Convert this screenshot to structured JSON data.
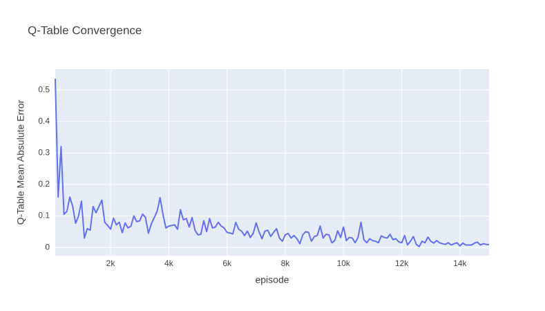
{
  "chart_data": {
    "type": "line",
    "title": "Q-Table Convergence",
    "xlabel": "episode",
    "ylabel": "Q-Table Mean Absulute Error",
    "xlim": [
      100,
      15000
    ],
    "ylim": [
      -0.026,
      0.566
    ],
    "xticks": [
      {
        "value": 2000,
        "label": "2k"
      },
      {
        "value": 4000,
        "label": "4k"
      },
      {
        "value": 6000,
        "label": "6k"
      },
      {
        "value": 8000,
        "label": "8k"
      },
      {
        "value": 10000,
        "label": "10k"
      },
      {
        "value": 12000,
        "label": "12k"
      },
      {
        "value": 14000,
        "label": "14k"
      }
    ],
    "yticks": [
      0,
      0.1,
      0.2,
      0.3,
      0.4,
      0.5
    ],
    "grid": true,
    "series": [
      {
        "color": "#636efa",
        "x": [
          100,
          200,
          300,
          400,
          500,
          600,
          700,
          800,
          900,
          1000,
          1100,
          1200,
          1300,
          1400,
          1500,
          1600,
          1700,
          1800,
          1900,
          2000,
          2100,
          2200,
          2300,
          2400,
          2500,
          2600,
          2700,
          2800,
          2900,
          3000,
          3100,
          3200,
          3300,
          3400,
          3500,
          3600,
          3700,
          3800,
          3900,
          4000,
          4100,
          4200,
          4300,
          4400,
          4500,
          4600,
          4700,
          4800,
          4900,
          5000,
          5100,
          5200,
          5300,
          5400,
          5500,
          5600,
          5700,
          5800,
          5900,
          6000,
          6100,
          6200,
          6300,
          6400,
          6500,
          6600,
          6700,
          6800,
          6900,
          7000,
          7100,
          7200,
          7300,
          7400,
          7500,
          7600,
          7700,
          7800,
          7900,
          8000,
          8100,
          8200,
          8300,
          8400,
          8500,
          8600,
          8700,
          8800,
          8900,
          9000,
          9100,
          9200,
          9300,
          9400,
          9500,
          9600,
          9700,
          9800,
          9900,
          10000,
          10100,
          10200,
          10300,
          10400,
          10500,
          10600,
          10700,
          10800,
          10900,
          11000,
          11100,
          11200,
          11300,
          11400,
          11500,
          11600,
          11700,
          11800,
          11900,
          12000,
          12100,
          12200,
          12300,
          12400,
          12500,
          12600,
          12700,
          12800,
          12900,
          13000,
          13100,
          13200,
          13300,
          13400,
          13500,
          13600,
          13700,
          13800,
          13900,
          14000,
          14100,
          14200,
          14300,
          14400,
          14500,
          14600,
          14700,
          14800,
          14900,
          15000
        ],
        "values": [
          0.535,
          0.16,
          0.32,
          0.105,
          0.115,
          0.16,
          0.13,
          0.077,
          0.1,
          0.147,
          0.03,
          0.06,
          0.055,
          0.13,
          0.11,
          0.13,
          0.15,
          0.08,
          0.07,
          0.058,
          0.093,
          0.072,
          0.08,
          0.047,
          0.078,
          0.062,
          0.068,
          0.1,
          0.082,
          0.085,
          0.106,
          0.095,
          0.045,
          0.075,
          0.095,
          0.115,
          0.158,
          0.105,
          0.062,
          0.068,
          0.07,
          0.072,
          0.058,
          0.12,
          0.088,
          0.092,
          0.065,
          0.095,
          0.055,
          0.04,
          0.042,
          0.085,
          0.05,
          0.092,
          0.062,
          0.065,
          0.08,
          0.068,
          0.062,
          0.048,
          0.046,
          0.043,
          0.08,
          0.058,
          0.052,
          0.038,
          0.052,
          0.032,
          0.045,
          0.078,
          0.05,
          0.028,
          0.052,
          0.055,
          0.035,
          0.048,
          0.06,
          0.03,
          0.02,
          0.04,
          0.045,
          0.03,
          0.038,
          0.028,
          0.012,
          0.04,
          0.05,
          0.048,
          0.02,
          0.035,
          0.038,
          0.068,
          0.03,
          0.042,
          0.04,
          0.015,
          0.022,
          0.053,
          0.032,
          0.065,
          0.022,
          0.032,
          0.03,
          0.015,
          0.032,
          0.08,
          0.025,
          0.015,
          0.028,
          0.022,
          0.02,
          0.015,
          0.037,
          0.032,
          0.03,
          0.042,
          0.025,
          0.028,
          0.018,
          0.015,
          0.038,
          0.008,
          0.02,
          0.035,
          0.01,
          0.003,
          0.02,
          0.015,
          0.033,
          0.02,
          0.014,
          0.022,
          0.015,
          0.012,
          0.01,
          0.015,
          0.008,
          0.012,
          0.015,
          0.005,
          0.014,
          0.008,
          0.008,
          0.008,
          0.014,
          0.017,
          0.008,
          0.012,
          0.01,
          0.009
        ]
      }
    ]
  }
}
